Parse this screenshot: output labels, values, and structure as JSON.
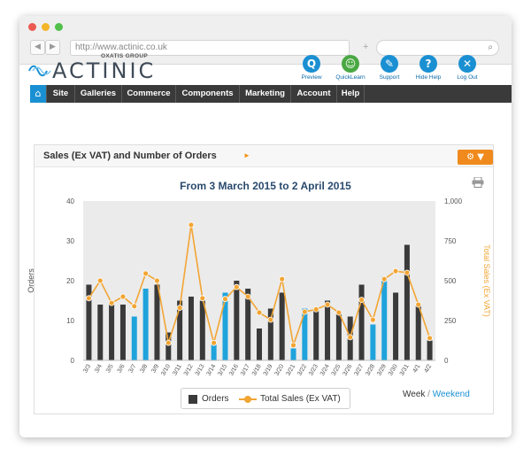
{
  "browser": {
    "url": "http://www.actinic.co.uk",
    "back_icon": "chevron-left-icon",
    "forward_icon": "chevron-right-icon",
    "add_tab": "+",
    "search_icon": "search-icon"
  },
  "brand": {
    "group": "OXATIS GROUP",
    "name": "ACTINIC"
  },
  "tools": [
    {
      "label": "Preview",
      "glyph": "Q",
      "color": "#1a90d2",
      "icon": "preview-icon"
    },
    {
      "label": "QuickLearn",
      "glyph": "☺",
      "color": "#4aa843",
      "icon": "quicklearn-icon"
    },
    {
      "label": "Support",
      "glyph": "✎",
      "color": "#1a90d2",
      "icon": "support-icon"
    },
    {
      "label": "Hide Help",
      "glyph": "?",
      "color": "#1a90d2",
      "icon": "help-icon"
    },
    {
      "label": "Log Out",
      "glyph": "✕",
      "color": "#1a90d2",
      "icon": "logout-icon"
    }
  ],
  "menu": [
    "Site",
    "Galleries",
    "Commerce",
    "Components",
    "Marketing",
    "Account",
    "Help"
  ],
  "panel": {
    "title": "Sales (Ex VAT) and Number of Orders",
    "arrow": "►",
    "gear": "⚙ ▼"
  },
  "legend": {
    "orders": "Orders",
    "sales": "Total Sales (Ex VAT)"
  },
  "toggle": {
    "week": "Week",
    "separator": "/",
    "weekend": "Weekend"
  },
  "colors": {
    "weekday_bar": "#3a3a3a",
    "weekend_bar": "#1fa3dc",
    "sales_line": "#f2a533",
    "band": "#ebebeb"
  },
  "chart_data": {
    "type": "bar",
    "title": "From 3 March 2015 to 2 April 2015",
    "ylabel": "Orders",
    "y2label": "Total Sales (Ex VAT)",
    "ylim": [
      0,
      40
    ],
    "y2lim": [
      0,
      1000
    ],
    "yticks": [
      "0",
      "10",
      "20",
      "30",
      "40"
    ],
    "y2ticks": [
      "0",
      "250",
      "500",
      "750",
      "1,000"
    ],
    "categories": [
      "3/3",
      "3/4",
      "3/5",
      "3/6",
      "3/7",
      "3/8",
      "3/9",
      "3/10",
      "3/11",
      "3/12",
      "3/13",
      "3/14",
      "3/15",
      "3/16",
      "3/17",
      "3/18",
      "3/19",
      "3/20",
      "3/21",
      "3/22",
      "3/23",
      "3/24",
      "3/25",
      "3/26",
      "3/27",
      "3/28",
      "3/29",
      "3/30",
      "3/31",
      "4/1",
      "4/2"
    ],
    "weekend": [
      false,
      false,
      false,
      false,
      true,
      true,
      false,
      false,
      false,
      false,
      false,
      true,
      true,
      false,
      false,
      false,
      false,
      false,
      true,
      true,
      false,
      false,
      false,
      false,
      false,
      true,
      true,
      false,
      false,
      false,
      false
    ],
    "series": [
      {
        "name": "Orders",
        "axis": "left",
        "values": [
          19,
          14,
          14,
          14,
          11,
          18,
          19,
          7,
          15,
          16,
          15,
          4,
          17,
          20,
          18,
          8,
          13,
          17,
          3,
          13,
          13,
          15,
          12,
          11,
          19,
          9,
          21,
          17,
          29,
          14,
          5
        ]
      },
      {
        "name": "Total Sales (Ex VAT)",
        "axis": "right",
        "values": [
          390,
          500,
          360,
          400,
          340,
          545,
          500,
          110,
          330,
          850,
          390,
          110,
          385,
          460,
          400,
          300,
          255,
          510,
          95,
          305,
          320,
          350,
          300,
          145,
          380,
          255,
          510,
          560,
          550,
          350,
          140
        ]
      }
    ],
    "grid": false,
    "legend_position": "bottom"
  }
}
